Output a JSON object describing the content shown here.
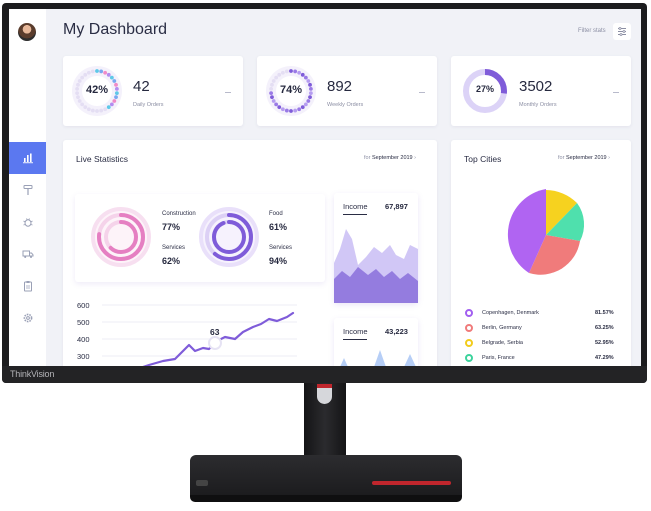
{
  "monitor": {
    "brand": "ThinkVision"
  },
  "header": {
    "title": "My Dashboard",
    "filter_label": "Filter stats"
  },
  "sidebar": {
    "items": [
      {
        "icon": "bar-chart-icon",
        "active": true
      },
      {
        "icon": "paint-roller-icon",
        "active": false
      },
      {
        "icon": "bug-icon",
        "active": false
      },
      {
        "icon": "truck-icon",
        "active": false
      },
      {
        "icon": "clipboard-icon",
        "active": false
      },
      {
        "icon": "gear-icon",
        "active": false
      }
    ]
  },
  "stats": [
    {
      "ring": "42%",
      "value": "42",
      "label": "Daily Orders",
      "progress": 0.42
    },
    {
      "ring": "74%",
      "value": "892",
      "label": "Weekly Orders",
      "progress": 0.74
    },
    {
      "ring": "27%",
      "value": "3502",
      "label": "Monthly Orders",
      "progress": 0.27
    }
  ],
  "live": {
    "title": "Live Statistics",
    "period_prefix": "for",
    "period": "September 2019",
    "construction": {
      "label": "Construction",
      "value": "77%"
    },
    "services_a": {
      "label": "Services",
      "value": "62%"
    },
    "food": {
      "label": "Food",
      "value": "61%"
    },
    "services_b": {
      "label": "Services",
      "value": "94%"
    },
    "line": {
      "y_ticks": [
        "600",
        "500",
        "400",
        "300"
      ],
      "peak_label": "63"
    },
    "income1": {
      "label": "Income",
      "value": "67,897"
    },
    "income2": {
      "label": "Income",
      "value": "43,223"
    }
  },
  "cities": {
    "title": "Top Cities",
    "period_prefix": "for",
    "period": "September 2019",
    "items": [
      {
        "name": "Copenhagen, Denmark",
        "pct": "81.57%",
        "color": "#a25ff0"
      },
      {
        "name": "Berlin, Germany",
        "pct": "63.25%",
        "color": "#f07b7b"
      },
      {
        "name": "Belgrade, Serbia",
        "pct": "52.95%",
        "color": "#f2cc1c"
      },
      {
        "name": "Paris, France",
        "pct": "47.29%",
        "color": "#3cd39c"
      }
    ]
  },
  "colors": {
    "accent": "#5b78f0",
    "purple": "#7f5cd9",
    "pink": "#e57fc2"
  }
}
